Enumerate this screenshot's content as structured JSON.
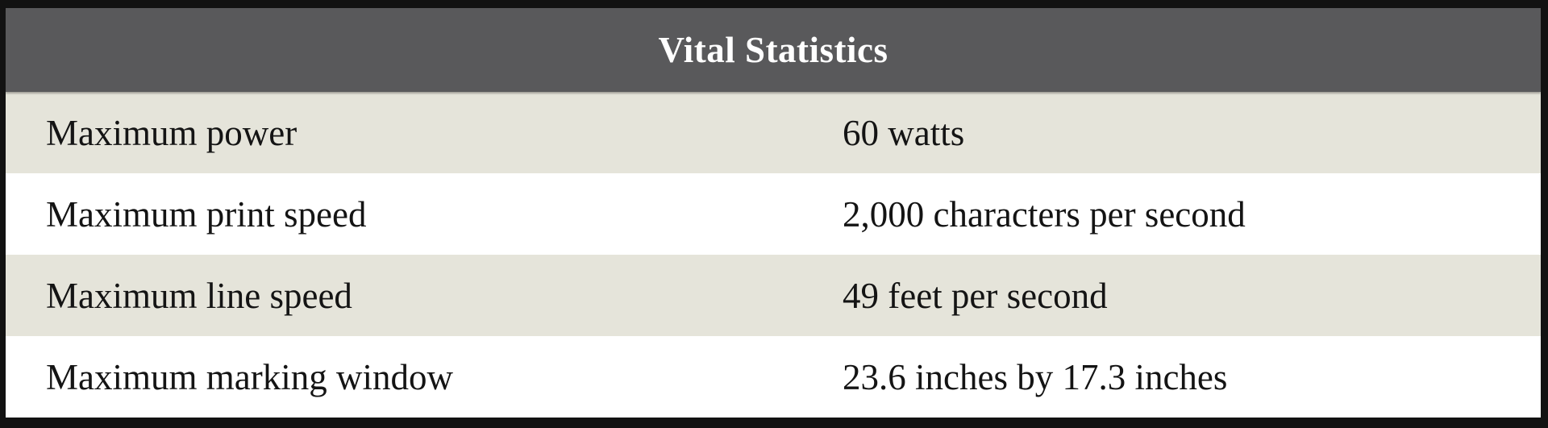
{
  "table": {
    "title": "Vital Statistics",
    "rows": [
      {
        "label": "Maximum power",
        "value": "60 watts"
      },
      {
        "label": "Maximum print speed",
        "value": "2,000 characters per second"
      },
      {
        "label": "Maximum line speed",
        "value": "49 feet per second"
      },
      {
        "label": "Maximum marking window",
        "value": "23.6 inches by 17.3 inches"
      }
    ],
    "colors": {
      "header_bg": "#59595b",
      "header_text": "#ffffff",
      "row_alt_bg": "#e5e4da",
      "row_bg": "#ffffff",
      "border": "#121212",
      "text": "#141414"
    }
  }
}
